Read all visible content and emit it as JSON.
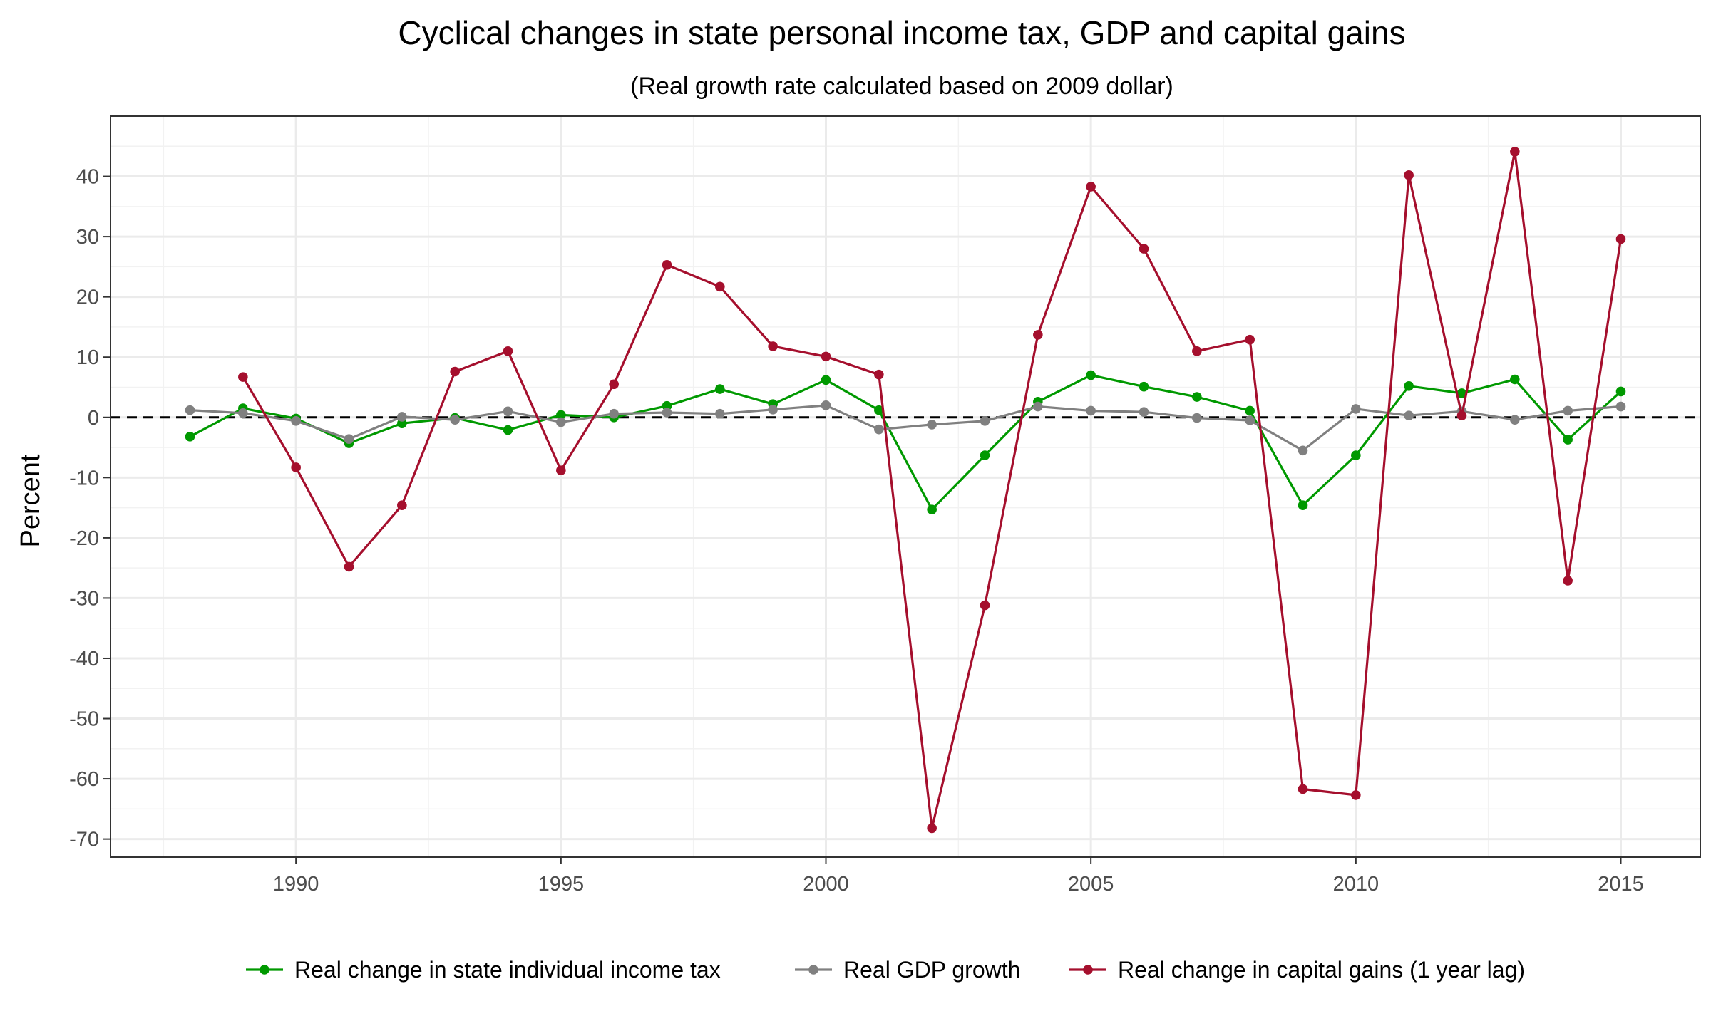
{
  "chart_data": {
    "type": "line",
    "title": "Cyclical changes in state personal income tax, GDP and capital gains",
    "subtitle": "(Real growth rate calculated based on 2009 dollar)",
    "xlabel": "",
    "ylabel": "Percent",
    "xlim": [
      1986.5,
      2016.5
    ],
    "ylim": [
      -73,
      50
    ],
    "x_ticks": [
      1990,
      1995,
      2000,
      2005,
      2010,
      2015
    ],
    "x_tick_labels": [
      "1990",
      "1995",
      "2000",
      "2005",
      "2010",
      "2015"
    ],
    "y_ticks": [
      -70,
      -60,
      -50,
      -40,
      -30,
      -20,
      -10,
      0,
      10,
      20,
      30,
      40
    ],
    "y_tick_labels": [
      "-70",
      "-60",
      "-50",
      "-40",
      "-30",
      "-20",
      "-10",
      "0",
      "10",
      "20",
      "30",
      "40"
    ],
    "grid": true,
    "reference_line": {
      "y": 0,
      "style": "dashed"
    },
    "legend_position": "bottom",
    "series": [
      {
        "name": "Real change in state individual income tax",
        "color": "#009900",
        "x": [
          1988,
          1989,
          1990,
          1991,
          1992,
          1993,
          1994,
          1995,
          1996,
          1997,
          1998,
          1999,
          2000,
          2001,
          2002,
          2003,
          2004,
          2005,
          2006,
          2007,
          2008,
          2009,
          2010,
          2011,
          2012,
          2013,
          2014,
          2015
        ],
        "values": [
          -3.2,
          1.5,
          -0.2,
          -4.3,
          -1.0,
          -0.1,
          -2.1,
          0.4,
          0.0,
          1.9,
          4.7,
          2.2,
          6.2,
          1.2,
          -15.3,
          -6.3,
          2.6,
          7.0,
          5.1,
          3.4,
          1.1,
          -14.6,
          -6.3,
          5.2,
          4.0,
          6.3,
          -3.7,
          4.3
        ]
      },
      {
        "name": "Real GDP growth",
        "color": "#808080",
        "x": [
          1988,
          1989,
          1990,
          1991,
          1992,
          1993,
          1994,
          1995,
          1996,
          1997,
          1998,
          1999,
          2000,
          2001,
          2002,
          2003,
          2004,
          2005,
          2006,
          2007,
          2008,
          2009,
          2010,
          2011,
          2012,
          2013,
          2014,
          2015
        ],
        "values": [
          1.2,
          0.7,
          -0.6,
          -3.6,
          0.1,
          -0.4,
          1.0,
          -0.8,
          0.6,
          0.8,
          0.6,
          1.3,
          2.0,
          -2.0,
          -1.2,
          -0.6,
          1.8,
          1.1,
          0.9,
          -0.1,
          -0.5,
          -5.5,
          1.4,
          0.3,
          1.0,
          -0.4,
          1.1,
          1.8
        ]
      },
      {
        "name": "Real change in capital gains (1 year lag)",
        "color": "#a50f2d",
        "x": [
          1989,
          1990,
          1991,
          1992,
          1993,
          1994,
          1995,
          1996,
          1997,
          1998,
          1999,
          2000,
          2001,
          2002,
          2003,
          2004,
          2005,
          2006,
          2007,
          2008,
          2009,
          2010,
          2011,
          2012,
          2013,
          2014,
          2015
        ],
        "values": [
          6.7,
          -8.3,
          -24.8,
          -14.6,
          7.6,
          11.0,
          -8.8,
          5.5,
          25.3,
          21.7,
          11.8,
          10.1,
          7.1,
          -68.2,
          -31.2,
          13.7,
          38.3,
          28.0,
          11.0,
          12.9,
          -61.7,
          -62.7,
          40.2,
          0.3,
          44.1,
          -27.1,
          29.6
        ]
      }
    ]
  }
}
